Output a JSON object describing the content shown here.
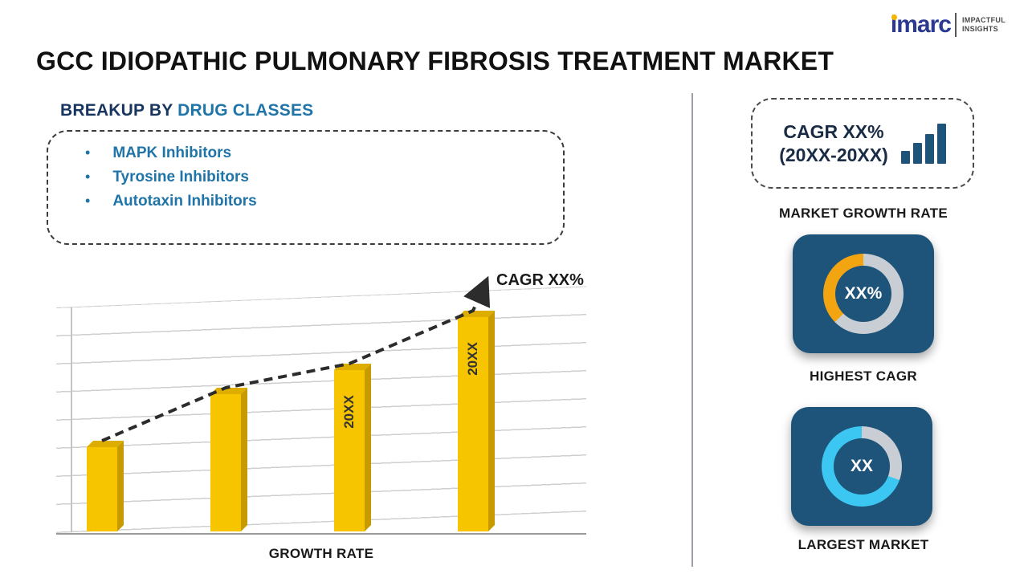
{
  "header": {
    "title": "GCC IDIOPATHIC PULMONARY FIBROSIS TREATMENT MARKET"
  },
  "logo": {
    "brand": "imarc",
    "tagline1": "IMPACTFUL",
    "tagline2": "INSIGHTS"
  },
  "breakup": {
    "heading_prefix": "BREAKUP BY ",
    "heading_highlight": "DRUG CLASSES",
    "items": [
      "MAPK Inhibitors",
      "Tyrosine Inhibitors",
      "Autotaxin Inhibitors"
    ],
    "bullet": "•"
  },
  "chart_data": {
    "type": "bar",
    "title": "GROWTH RATE",
    "xlabel": "GROWTH RATE",
    "ylabel": "",
    "categories": [
      "",
      "",
      "20XX",
      "20XX"
    ],
    "values": [
      38,
      62,
      73,
      97
    ],
    "bar_labels": [
      "",
      "",
      "20XX",
      "20XX"
    ],
    "trend_label": "CAGR XX%",
    "bar_color": "#F6C500",
    "grid": true,
    "trend": "dashed ascending arrow",
    "note": "placeholder infographic chart; values estimated from bar heights (percent of plot height)"
  },
  "sidebar": {
    "cagr_box": {
      "line1": "CAGR XX%",
      "line2": "(20XX-20XX)"
    },
    "market_growth_label": "MARKET GROWTH RATE",
    "highest_cagr": {
      "value": "XX%",
      "label": "HIGHEST CAGR"
    },
    "largest_market": {
      "value": "XX",
      "label": "LARGEST MARKET"
    }
  },
  "colors": {
    "navy_tile": "#1E5479",
    "bar_yellow": "#F6C500",
    "donut_yellow": "#F2A511",
    "donut_cyan": "#3CC7F2",
    "donut_gray": "#C9CED4",
    "text_blue": "#1F74A8",
    "brand_blue": "#2B3990"
  }
}
